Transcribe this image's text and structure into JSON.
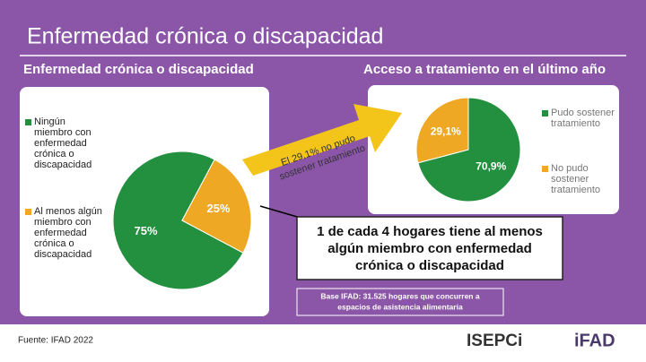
{
  "title": "Enfermedad crónica o discapacidad",
  "chart_data": [
    {
      "type": "pie",
      "title": "Enfermedad crónica o discapacidad",
      "categories": [
        "Ningún miembro con enfermedad crónica o discapacidad",
        "Al menos algún miembro con enfermedad crónica o discapacidad"
      ],
      "values": [
        75,
        25
      ],
      "value_labels": [
        "75%",
        "25%"
      ],
      "colors": [
        "#22903e",
        "#eea824"
      ]
    },
    {
      "type": "pie",
      "title": "Acceso a tratamiento en el último año",
      "categories": [
        "Pudo sostener tratamiento",
        "No pudo sostener tratamiento"
      ],
      "values": [
        70.9,
        29.1
      ],
      "value_labels": [
        "70,9%",
        "29,1%"
      ],
      "colors": [
        "#22903e",
        "#eea824"
      ]
    }
  ],
  "arrow_text": [
    "El 29,1% no pudo",
    "sostener tratamiento"
  ],
  "callout": [
    "1 de cada 4 hogares tiene al menos",
    "algún miembro con enfermedad",
    "crónica o discapacidad"
  ],
  "base_note": [
    "Base IFAD: 31.525 hogares que concurren a",
    "espacios de asistencia alimentaria"
  ],
  "source": "Fuente: IFAD 2022",
  "logos": [
    "ISEPCi",
    "iFAD"
  ]
}
